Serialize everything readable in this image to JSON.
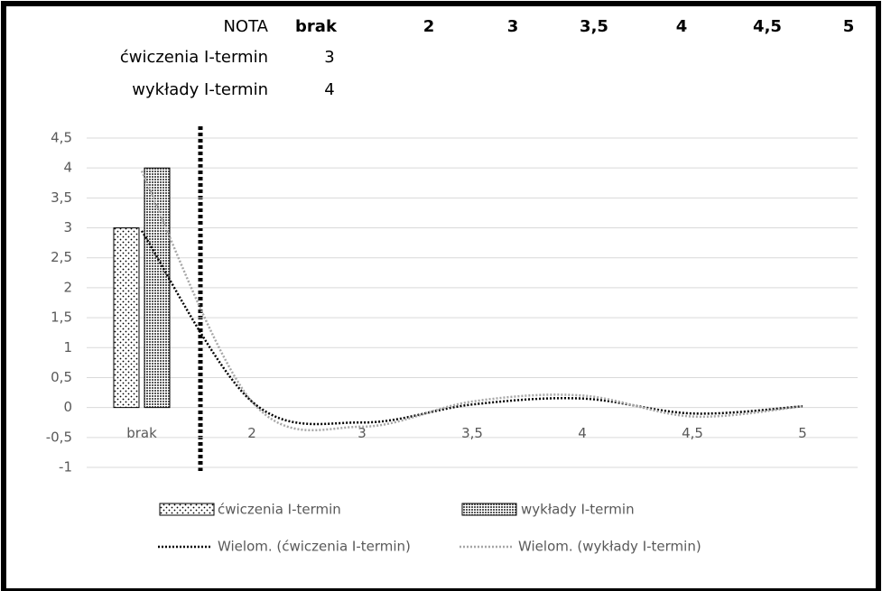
{
  "table": {
    "header": [
      "NOTA",
      "brak",
      "2",
      "3",
      "3,5",
      "4",
      "4,5",
      "5"
    ],
    "rows": [
      [
        "ćwiczenia I-termin",
        3
      ],
      [
        "wykłady I-termin",
        4
      ]
    ]
  },
  "chart_data": {
    "type": "bar",
    "categories": [
      "brak",
      "2",
      "3",
      "3,5",
      "4",
      "4,5",
      "5"
    ],
    "series": [
      {
        "name": "ćwiczenia I-termin",
        "color": "#ffffff",
        "values": [
          3,
          null,
          null,
          null,
          null,
          null,
          null
        ]
      },
      {
        "name": "wykłady I-termin",
        "color": "#595959",
        "values": [
          4,
          null,
          null,
          null,
          null,
          null,
          null
        ]
      }
    ],
    "trendlines": [
      {
        "name": "Wielom. (ćwiczenia I-termin)",
        "color": "#000000",
        "values": [
          2.95,
          0.1,
          -0.25,
          0.05,
          0.15,
          -0.1,
          0.02
        ]
      },
      {
        "name": "Wielom. (wykłady I-termin)",
        "color": "#a6a6a6",
        "values": [
          3.95,
          0.1,
          -0.32,
          0.1,
          0.2,
          -0.15,
          0.02
        ]
      }
    ],
    "ylim": [
      -1,
      4.5
    ],
    "yticks": [
      -1,
      {
        "value": -0.5,
        "label": "-0,5"
      },
      0,
      {
        "value": 0.5,
        "label": "0,5"
      },
      1,
      {
        "value": 1.5,
        "label": "1,5"
      },
      2,
      {
        "value": 2.5,
        "label": "2,5"
      },
      3,
      {
        "value": 3.5,
        "label": "3,5"
      },
      4,
      {
        "value": 4.5,
        "label": "4,5"
      }
    ],
    "grid": true
  }
}
